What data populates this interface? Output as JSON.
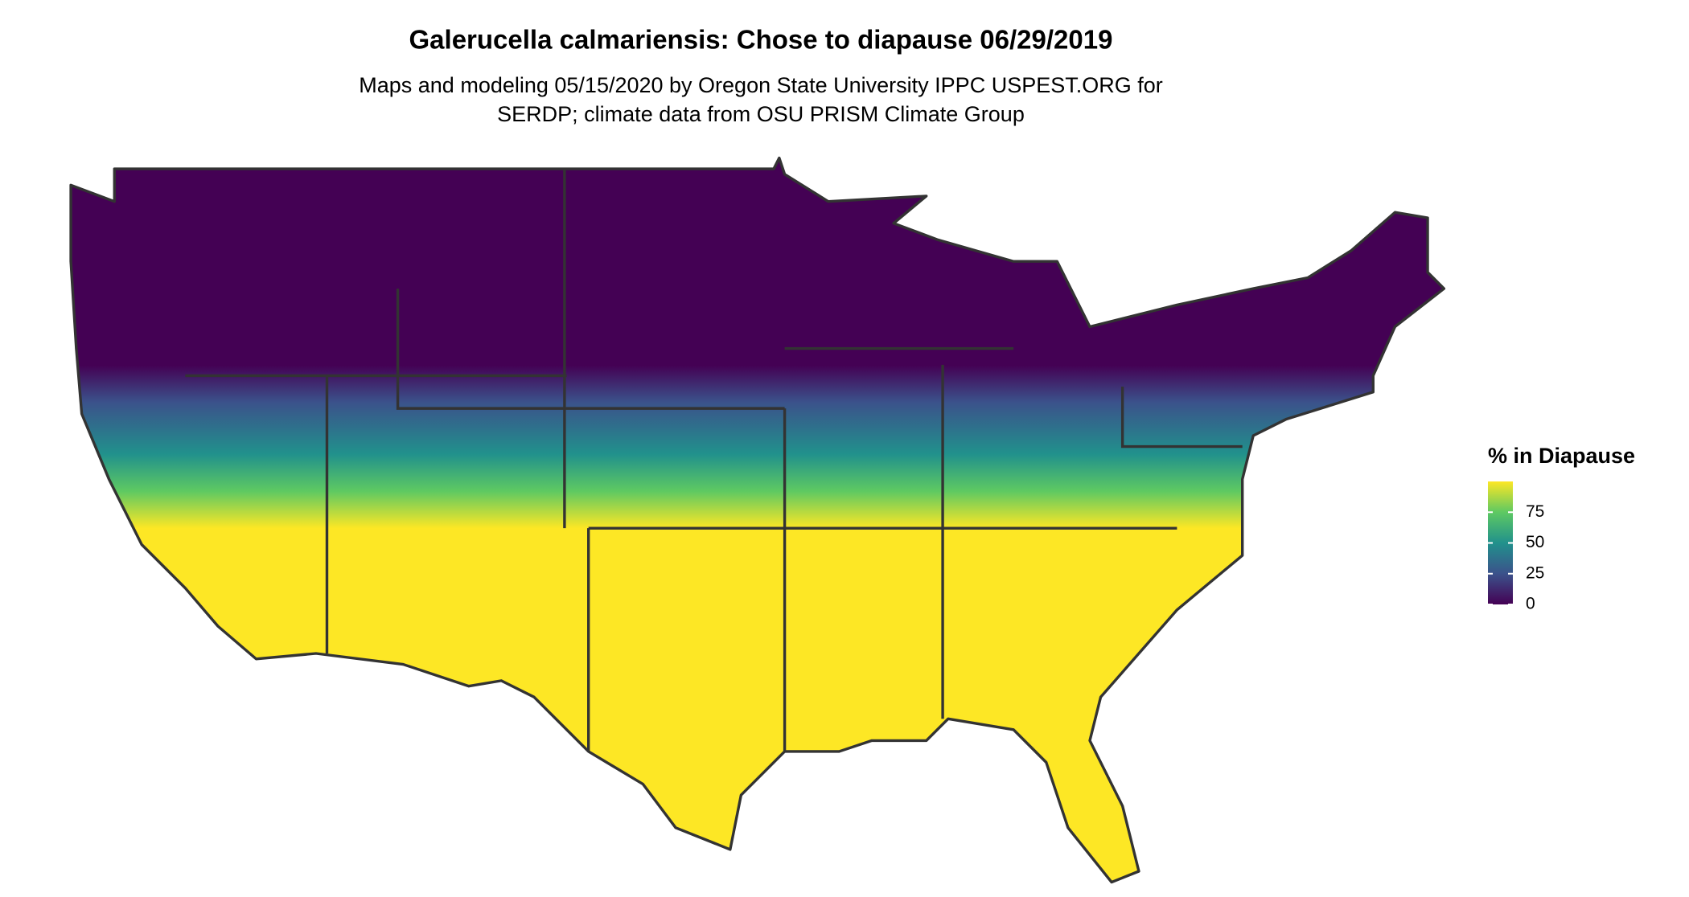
{
  "title": "Galerucella calmariensis: Chose to diapause 06/29/2019",
  "subtitle": [
    "Maps and modeling 05/15/2020 by Oregon State University IPPC USPEST.ORG for",
    "SERDP; climate data from OSU PRISM Climate Group"
  ],
  "legend": {
    "title": "% in Diapause",
    "lim": [
      0,
      100
    ],
    "ticks": [
      0,
      25,
      50,
      75
    ]
  }
}
